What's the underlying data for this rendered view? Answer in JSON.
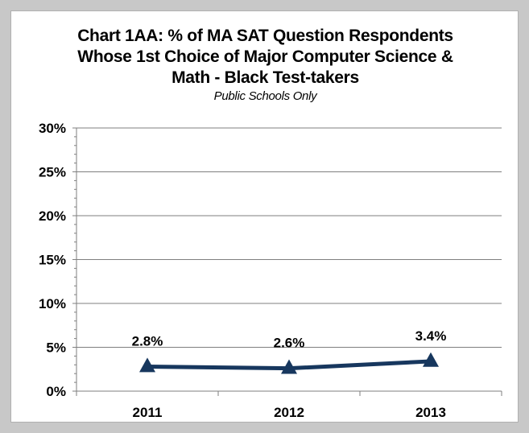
{
  "chart_data": {
    "type": "line",
    "title_lines": [
      "Chart 1AA: % of MA SAT Question Respondents",
      "Whose 1st Choice of Major Computer Science &",
      "Math - Black Test-takers"
    ],
    "subtitle": "Public Schools Only",
    "categories": [
      "2011",
      "2012",
      "2013"
    ],
    "series": [
      {
        "values": [
          2.8,
          2.6,
          3.4
        ],
        "data_labels": [
          "2.8%",
          "2.6%",
          "3.4%"
        ],
        "color": "#17375e",
        "marker": "triangle"
      }
    ],
    "y_ticks": [
      0,
      5,
      10,
      15,
      20,
      25,
      30
    ],
    "y_tick_labels": [
      "0%",
      "5%",
      "10%",
      "15%",
      "20%",
      "25%",
      "30%"
    ],
    "ylim": [
      0,
      30
    ],
    "grid": true,
    "legend": "none"
  },
  "colors": {
    "frame": "#c8c8c8",
    "gridline": "#7f7f7f",
    "line": "#17375e"
  }
}
